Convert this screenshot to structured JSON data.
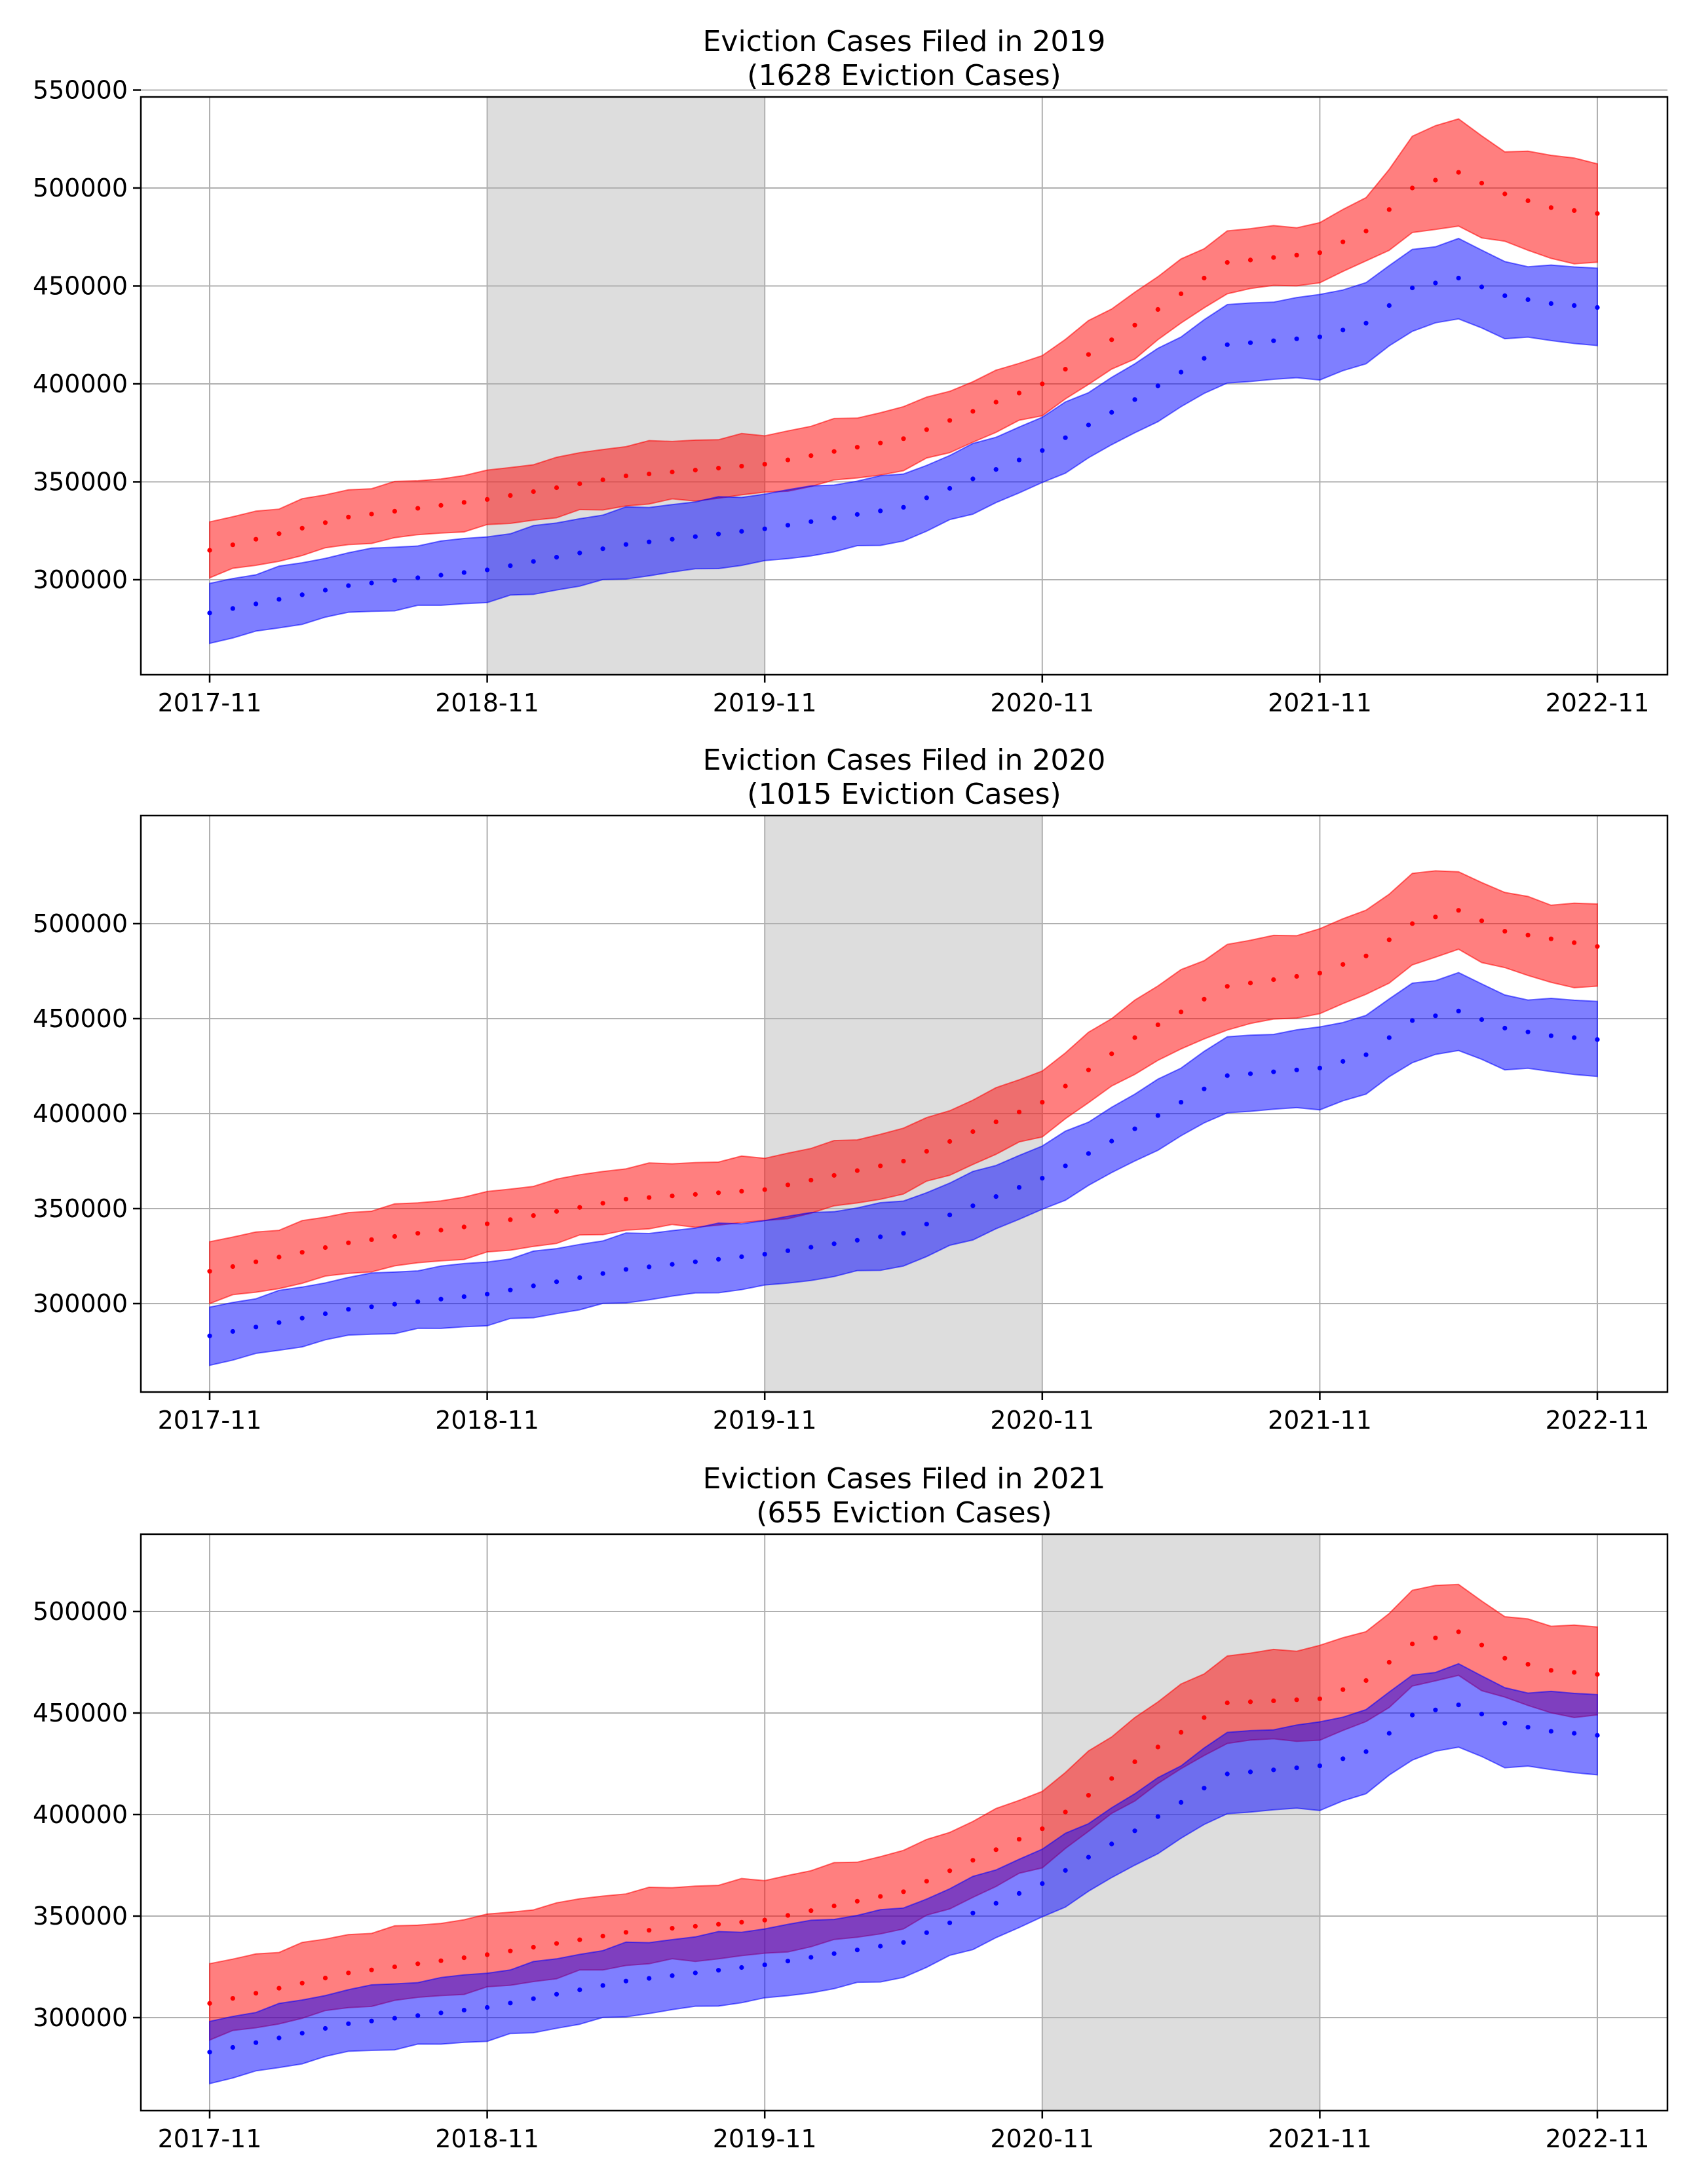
{
  "chart_data": [
    {
      "type": "area",
      "title": "Eviction Cases Filed in 2019",
      "subtitle": "(1628 Eviction Cases)",
      "xlabel": "",
      "ylabel": "",
      "x_tick_labels": [
        "2017-11",
        "2018-11",
        "2019-11",
        "2020-11",
        "2021-11",
        "2022-11"
      ],
      "y_tick_labels": [
        "300000",
        "350000",
        "400000",
        "450000",
        "500000",
        "550000"
      ],
      "ylim": [
        255000,
        550000
      ],
      "grid": true,
      "highlight_span": [
        "2018-11",
        "2019-11"
      ],
      "highlight_color": "#dddddd",
      "series": [
        {
          "color": "#ff0000",
          "anchor_months": [
            0,
            6,
            12,
            18,
            24,
            30,
            36,
            40,
            44,
            48,
            50,
            52,
            54,
            56,
            58,
            60
          ],
          "mean": [
            315000,
            332000,
            341000,
            353000,
            359000,
            372000,
            400000,
            430000,
            462000,
            467000,
            478000,
            500000,
            508000,
            497000,
            490000,
            487000
          ],
          "upper": [
            329000,
            346000,
            355000,
            369000,
            374000,
            388000,
            415000,
            447000,
            478000,
            482000,
            495000,
            526000,
            536000,
            518000,
            518000,
            512000
          ],
          "lower": [
            302000,
            318000,
            327000,
            338000,
            344000,
            356000,
            385000,
            414000,
            447000,
            452000,
            462000,
            477000,
            480000,
            472000,
            464000,
            461000
          ]
        },
        {
          "color": "#0000ff",
          "anchor_months": [
            0,
            6,
            12,
            18,
            24,
            30,
            36,
            40,
            44,
            48,
            50,
            52,
            54,
            56,
            58,
            60
          ],
          "mean": [
            283000,
            297000,
            305000,
            318000,
            326000,
            337000,
            366000,
            392000,
            420000,
            424000,
            431000,
            449000,
            454000,
            445000,
            441000,
            439000
          ],
          "upper": [
            298000,
            314000,
            322000,
            336000,
            344000,
            354000,
            383000,
            410000,
            440000,
            445000,
            452000,
            468000,
            474000,
            462000,
            460000,
            459000
          ],
          "lower": [
            268000,
            283000,
            289000,
            301000,
            309000,
            320000,
            349000,
            375000,
            401000,
            403000,
            410000,
            428000,
            433000,
            424000,
            422000,
            420000
          ]
        }
      ]
    },
    {
      "type": "area",
      "title": "Eviction Cases Filed in 2020",
      "subtitle": "(1015 Eviction Cases)",
      "xlabel": "",
      "ylabel": "",
      "x_tick_labels": [
        "2017-11",
        "2018-11",
        "2019-11",
        "2020-11",
        "2021-11",
        "2022-11"
      ],
      "y_tick_labels": [
        "300000",
        "350000",
        "400000",
        "450000",
        "500000"
      ],
      "ylim": [
        255000,
        545000
      ],
      "grid": true,
      "highlight_span": [
        "2019-11",
        "2020-11"
      ],
      "highlight_color": "#dddddd",
      "series": [
        {
          "color": "#ff0000",
          "anchor_months": [
            0,
            6,
            12,
            18,
            24,
            30,
            36,
            40,
            44,
            48,
            50,
            52,
            54,
            56,
            58,
            60
          ],
          "mean": [
            317000,
            332000,
            342000,
            355000,
            360000,
            375000,
            406000,
            440000,
            467000,
            474000,
            483000,
            500000,
            507000,
            496000,
            492000,
            488000
          ],
          "upper": [
            332000,
            348000,
            358000,
            372000,
            377000,
            392000,
            423000,
            460000,
            489000,
            497000,
            507000,
            526000,
            528000,
            516000,
            511000,
            510000
          ],
          "lower": [
            301000,
            316000,
            326000,
            339000,
            343000,
            358000,
            389000,
            422000,
            445000,
            453000,
            462000,
            478000,
            486000,
            476000,
            469000,
            466000
          ]
        },
        {
          "color": "#0000ff",
          "anchor_months": [
            0,
            6,
            12,
            18,
            24,
            30,
            36,
            40,
            44,
            48,
            50,
            52,
            54,
            56,
            58,
            60
          ],
          "mean": [
            283000,
            297000,
            305000,
            318000,
            326000,
            337000,
            366000,
            392000,
            420000,
            424000,
            431000,
            449000,
            454000,
            445000,
            441000,
            439000
          ],
          "upper": [
            298000,
            314000,
            322000,
            336000,
            344000,
            354000,
            383000,
            410000,
            440000,
            445000,
            452000,
            468000,
            474000,
            462000,
            460000,
            459000
          ],
          "lower": [
            268000,
            283000,
            289000,
            301000,
            309000,
            320000,
            349000,
            375000,
            401000,
            403000,
            410000,
            428000,
            433000,
            424000,
            422000,
            420000
          ]
        }
      ]
    },
    {
      "type": "area",
      "title": "Eviction Cases Filed in 2021",
      "subtitle": "(655 Eviction Cases)",
      "xlabel": "",
      "ylabel": "",
      "x_tick_labels": [
        "2017-11",
        "2018-11",
        "2019-11",
        "2020-11",
        "2021-11",
        "2022-11"
      ],
      "y_tick_labels": [
        "300000",
        "350000",
        "400000",
        "450000",
        "500000"
      ],
      "ylim": [
        260000,
        528000
      ],
      "grid": true,
      "highlight_span": [
        "2020-11",
        "2021-11"
      ],
      "highlight_color": "#dddddd",
      "series": [
        {
          "color": "#ff0000",
          "anchor_months": [
            0,
            6,
            12,
            18,
            24,
            30,
            36,
            40,
            44,
            48,
            50,
            52,
            54,
            56,
            58,
            60
          ],
          "mean": [
            307000,
            322000,
            331000,
            342000,
            348000,
            362000,
            393000,
            426000,
            455000,
            457000,
            466000,
            484000,
            490000,
            477000,
            471000,
            469000
          ],
          "upper": [
            326000,
            341000,
            350000,
            362000,
            368000,
            382000,
            412000,
            448000,
            478000,
            483000,
            490000,
            510000,
            514000,
            497000,
            494000,
            492000
          ],
          "lower": [
            290000,
            305000,
            314000,
            326000,
            331000,
            344000,
            375000,
            408000,
            436000,
            437000,
            445000,
            463000,
            468000,
            457000,
            450000,
            448000
          ]
        },
        {
          "color": "#0000ff",
          "anchor_months": [
            0,
            6,
            12,
            18,
            24,
            30,
            36,
            40,
            44,
            48,
            50,
            52,
            54,
            56,
            58,
            60
          ],
          "mean": [
            283000,
            297000,
            305000,
            318000,
            326000,
            337000,
            366000,
            392000,
            420000,
            424000,
            431000,
            449000,
            454000,
            445000,
            441000,
            439000
          ],
          "upper": [
            298000,
            314000,
            322000,
            336000,
            344000,
            354000,
            383000,
            410000,
            440000,
            445000,
            452000,
            468000,
            474000,
            462000,
            460000,
            459000
          ],
          "lower": [
            268000,
            283000,
            289000,
            301000,
            309000,
            320000,
            349000,
            375000,
            401000,
            403000,
            410000,
            428000,
            433000,
            424000,
            422000,
            420000
          ]
        }
      ]
    }
  ]
}
